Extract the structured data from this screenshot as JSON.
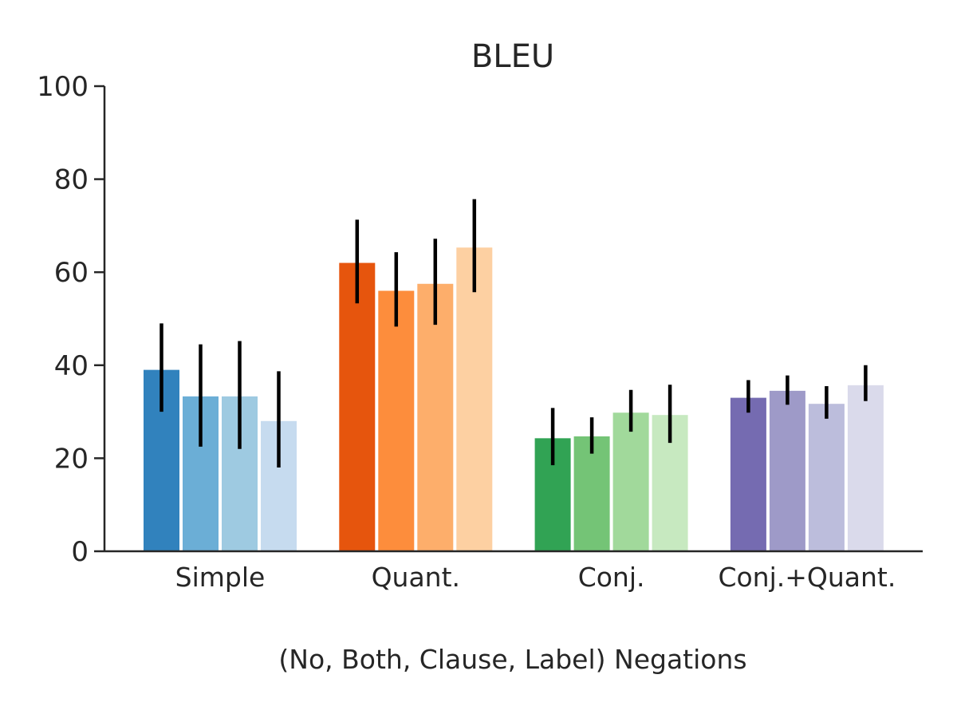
{
  "chart_data": {
    "type": "bar",
    "title": "BLEU",
    "xlabel": "(No, Both, Clause, Label) Negations",
    "ylabel": "",
    "ylim": [
      0,
      100
    ],
    "yticks": [
      0,
      20,
      40,
      60,
      80,
      100
    ],
    "grid": false,
    "legend": "none",
    "categories": [
      "Simple",
      "Quant.",
      "Conj.",
      "Conj.+Quant."
    ],
    "groups": [
      {
        "category": "Simple",
        "bars": [
          {
            "value": 39.0,
            "err_low": 30.0,
            "err_high": 49.0,
            "color": "#3182bd"
          },
          {
            "value": 33.3,
            "err_low": 22.5,
            "err_high": 44.5,
            "color": "#6baed6"
          },
          {
            "value": 33.3,
            "err_low": 22.0,
            "err_high": 45.2,
            "color": "#9ecae1"
          },
          {
            "value": 28.0,
            "err_low": 18.0,
            "err_high": 38.7,
            "color": "#c6dbef"
          }
        ]
      },
      {
        "category": "Quant.",
        "bars": [
          {
            "value": 62.0,
            "err_low": 53.3,
            "err_high": 71.3,
            "color": "#e6550d"
          },
          {
            "value": 56.0,
            "err_low": 48.3,
            "err_high": 64.3,
            "color": "#fd8d3c"
          },
          {
            "value": 57.5,
            "err_low": 48.7,
            "err_high": 67.2,
            "color": "#fdae6b"
          },
          {
            "value": 65.3,
            "err_low": 55.7,
            "err_high": 75.7,
            "color": "#fdd0a2"
          }
        ]
      },
      {
        "category": "Conj.",
        "bars": [
          {
            "value": 24.3,
            "err_low": 18.5,
            "err_high": 30.8,
            "color": "#31a354"
          },
          {
            "value": 24.7,
            "err_low": 21.0,
            "err_high": 28.8,
            "color": "#74c476"
          },
          {
            "value": 29.8,
            "err_low": 25.7,
            "err_high": 34.7,
            "color": "#a1d99b"
          },
          {
            "value": 29.3,
            "err_low": 23.3,
            "err_high": 35.8,
            "color": "#c7e9c0"
          }
        ]
      },
      {
        "category": "Conj.+Quant.",
        "bars": [
          {
            "value": 33.0,
            "err_low": 29.8,
            "err_high": 36.8,
            "color": "#756bb1"
          },
          {
            "value": 34.5,
            "err_low": 31.5,
            "err_high": 37.8,
            "color": "#9e9ac8"
          },
          {
            "value": 31.7,
            "err_low": 28.5,
            "err_high": 35.5,
            "color": "#bcbddc"
          },
          {
            "value": 35.7,
            "err_low": 32.3,
            "err_high": 40.0,
            "color": "#dadaeb"
          }
        ]
      }
    ]
  }
}
